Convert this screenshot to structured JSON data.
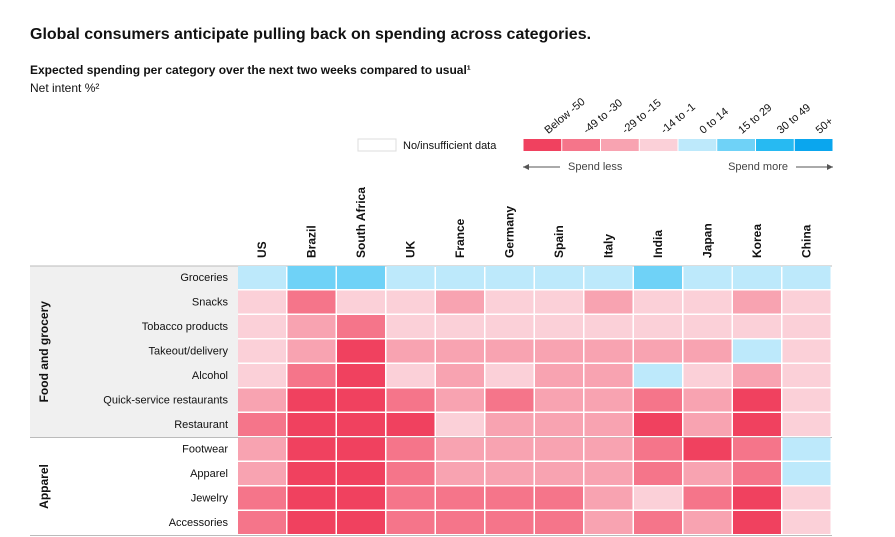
{
  "chart_data": {
    "type": "heatmap",
    "title": "Global consumers anticipate pulling back on spending across categories.",
    "subtitle": "Expected spending per category over the next two weeks compared to usual¹",
    "unit_label": "Net intent %²",
    "no_data_label": "No/insufficient data",
    "bins": [
      {
        "label": "Below -50",
        "color": "#f0415f"
      },
      {
        "label": "-49 to -30",
        "color": "#f5758a"
      },
      {
        "label": "-29 to -15",
        "color": "#f8a3b1"
      },
      {
        "label": "-14 to -1",
        "color": "#fbd0d8"
      },
      {
        "label": "0 to 14",
        "color": "#bde9fb"
      },
      {
        "label": "15 to 29",
        "color": "#6fd2f7"
      },
      {
        "label": "30 to 49",
        "color": "#27baf2"
      },
      {
        "label": "50+",
        "color": "#0aa6ee"
      }
    ],
    "spend_less": "Spend less",
    "spend_more": "Spend more",
    "columns": [
      "US",
      "Brazil",
      "South Africa",
      "UK",
      "France",
      "Germany",
      "Spain",
      "Italy",
      "India",
      "Japan",
      "Korea",
      "China"
    ],
    "groups": [
      {
        "name": "Food and grocery",
        "rows": [
          "Groceries",
          "Snacks",
          "Tobacco products",
          "Takeout/delivery",
          "Alcohol",
          "Quick-service restaurants",
          "Restaurant"
        ],
        "values": [
          [
            4,
            5,
            5,
            4,
            4,
            4,
            4,
            4,
            5,
            4,
            4,
            4
          ],
          [
            3,
            1,
            3,
            3,
            2,
            3,
            3,
            2,
            3,
            3,
            2,
            3
          ],
          [
            3,
            2,
            1,
            3,
            3,
            3,
            3,
            3,
            3,
            3,
            3,
            3
          ],
          [
            3,
            2,
            0,
            2,
            2,
            2,
            2,
            2,
            2,
            2,
            4,
            3
          ],
          [
            3,
            1,
            0,
            3,
            2,
            3,
            2,
            2,
            4,
            3,
            2,
            3
          ],
          [
            2,
            0,
            0,
            1,
            2,
            1,
            2,
            2,
            1,
            2,
            0,
            3
          ],
          [
            1,
            0,
            0,
            0,
            3,
            2,
            2,
            2,
            0,
            2,
            0,
            3
          ]
        ]
      },
      {
        "name": "Apparel",
        "rows": [
          "Footwear",
          "Apparel",
          "Jewelry",
          "Accessories"
        ],
        "values": [
          [
            2,
            0,
            0,
            1,
            2,
            2,
            2,
            2,
            1,
            0,
            1,
            4
          ],
          [
            2,
            0,
            0,
            1,
            2,
            2,
            2,
            2,
            1,
            2,
            1,
            4
          ],
          [
            1,
            0,
            0,
            1,
            1,
            1,
            1,
            2,
            3,
            1,
            0,
            3
          ],
          [
            1,
            0,
            0,
            1,
            1,
            1,
            1,
            2,
            1,
            2,
            0,
            3
          ]
        ]
      }
    ]
  }
}
